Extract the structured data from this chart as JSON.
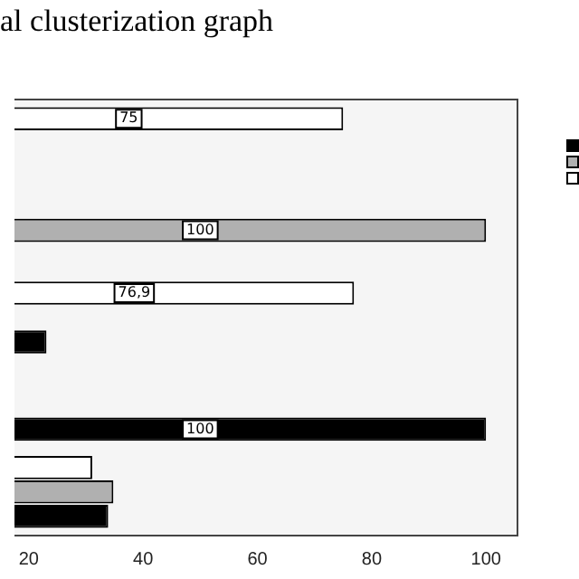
{
  "chart_data": {
    "type": "bar",
    "orientation": "horizontal",
    "title": "al clusterization graph",
    "categories": [
      null,
      null,
      null,
      null,
      null
    ],
    "series": [
      {
        "color": "#ffffff",
        "values": [
          75,
          null,
          76.9,
          null,
          31.1
        ],
        "value_labels": [
          "75",
          null,
          "76,9",
          null,
          null
        ]
      },
      {
        "color": "#b0b0b0",
        "values": [
          null,
          100,
          null,
          null,
          34.8
        ],
        "value_labels": [
          null,
          "100",
          null,
          null,
          null
        ]
      },
      {
        "color": "#000000",
        "values": [
          null,
          null,
          23.1,
          100,
          33.9
        ],
        "value_labels": [
          null,
          null,
          null,
          "100",
          null
        ]
      }
    ],
    "xlim": [
      17.5,
      105.5
    ],
    "xticks": [
      20,
      40,
      60,
      80,
      100
    ],
    "grid": false
  }
}
